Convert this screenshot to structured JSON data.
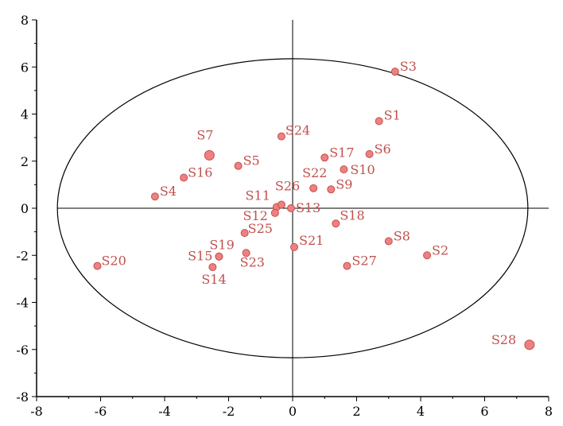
{
  "chart_data": {
    "type": "scatter",
    "title": "",
    "xlabel": "",
    "ylabel": "",
    "xlim": [
      -8,
      8
    ],
    "ylim": [
      -8,
      8
    ],
    "xticks": [
      "-8",
      "-6",
      "-4",
      "-2",
      "0",
      "2",
      "4",
      "6",
      "8"
    ],
    "yticks": [
      "8",
      "6",
      "4",
      "2",
      "0",
      "-2",
      "-4",
      "-6",
      "-8"
    ],
    "grid": false,
    "marker_color": "#f08080",
    "marker_edge": "#c0504d",
    "label_color": "#c0504d",
    "confidence_ellipse": {
      "center": [
        0,
        0
      ],
      "rx": 7.35,
      "ry": 6.35
    },
    "points": [
      {
        "label": "S1",
        "x": 2.7,
        "y": 3.7
      },
      {
        "label": "S2",
        "x": 4.2,
        "y": -2.0
      },
      {
        "label": "S3",
        "x": 3.2,
        "y": 5.8
      },
      {
        "label": "S4",
        "x": -4.3,
        "y": 0.5
      },
      {
        "label": "S5",
        "x": -1.7,
        "y": 1.8
      },
      {
        "label": "S6",
        "x": 2.4,
        "y": 2.3
      },
      {
        "label": "S7",
        "x": -2.6,
        "y": 2.25,
        "size": "large"
      },
      {
        "label": "S8",
        "x": 3.0,
        "y": -1.4
      },
      {
        "label": "S9",
        "x": 1.2,
        "y": 0.8
      },
      {
        "label": "S10",
        "x": 1.6,
        "y": 1.65
      },
      {
        "label": "S11",
        "x": -0.5,
        "y": 0.05
      },
      {
        "label": "S12",
        "x": -0.55,
        "y": -0.2
      },
      {
        "label": "S13",
        "x": -0.05,
        "y": 0.0
      },
      {
        "label": "S14",
        "x": -2.5,
        "y": -2.5
      },
      {
        "label": "S15",
        "x": -2.3,
        "y": -2.05
      },
      {
        "label": "S16",
        "x": -3.4,
        "y": 1.3
      },
      {
        "label": "S17",
        "x": 1.0,
        "y": 2.15
      },
      {
        "label": "S18",
        "x": 1.35,
        "y": -0.65
      },
      {
        "label": "S19",
        "x": -2.3,
        "y": -2.05
      },
      {
        "label": "S20",
        "x": -6.1,
        "y": -2.45
      },
      {
        "label": "S21",
        "x": 0.05,
        "y": -1.65
      },
      {
        "label": "S22",
        "x": 0.65,
        "y": 0.85
      },
      {
        "label": "S23",
        "x": -1.45,
        "y": -1.9
      },
      {
        "label": "S24",
        "x": -0.35,
        "y": 3.05
      },
      {
        "label": "S25",
        "x": -1.5,
        "y": -1.05
      },
      {
        "label": "S26",
        "x": -0.35,
        "y": 0.15
      },
      {
        "label": "S27",
        "x": 1.7,
        "y": -2.45
      },
      {
        "label": "S28",
        "x": 7.4,
        "y": -5.8,
        "size": "large"
      }
    ]
  }
}
